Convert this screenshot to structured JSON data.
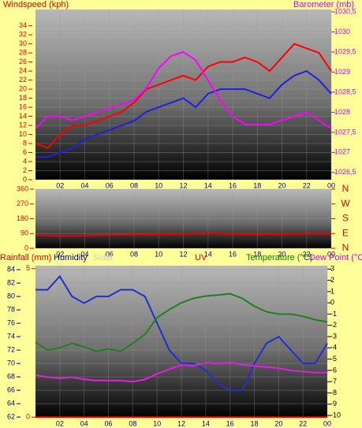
{
  "chart_data": [
    {
      "type": "line",
      "headers": [
        {
          "text": "Windspeed (kph)",
          "color": "#e00000"
        },
        {
          "text": "Barometer (mb)",
          "color": "#e000e0"
        }
      ],
      "x": [
        0,
        1,
        2,
        3,
        4,
        5,
        6,
        7,
        8,
        9,
        10,
        11,
        12,
        13,
        14,
        15,
        16,
        17,
        18,
        19,
        20,
        21,
        22,
        23,
        24
      ],
      "xlim": [
        0,
        24
      ],
      "xticks": [
        {
          "value": 2,
          "label": "02"
        },
        {
          "value": 4,
          "label": "04"
        },
        {
          "value": 6,
          "label": "06"
        },
        {
          "value": 8,
          "label": "08"
        },
        10,
        12,
        14,
        16,
        18,
        20,
        22,
        {
          "value": 24,
          "label": "00"
        }
      ],
      "ylim": [
        0,
        37.6
      ],
      "yticks": [
        0,
        2,
        4,
        6,
        8,
        10,
        12,
        14,
        16,
        18,
        20,
        22,
        24,
        26,
        28,
        30,
        32,
        34
      ],
      "y2lim": [
        1026.32,
        1030.56
      ],
      "y2ticks": [
        {
          "value": 1026.5,
          "label": "1026,5"
        },
        1027,
        {
          "value": 1027.5,
          "label": "1027,5"
        },
        1028,
        {
          "value": 1028.5,
          "label": "1028,5"
        },
        1029,
        {
          "value": 1029.5,
          "label": "1029,5"
        },
        1030,
        {
          "value": 1030.5,
          "label": "1030,5"
        }
      ],
      "grid": true,
      "series": [
        {
          "color": "#ff0000",
          "values": [
            8,
            7,
            10,
            12,
            12,
            13,
            14,
            15,
            17,
            20,
            21,
            22,
            23,
            22,
            25,
            26,
            26,
            27,
            26,
            24,
            27,
            30,
            29,
            28,
            24
          ]
        },
        {
          "color": "#2020e0",
          "values": [
            5,
            5,
            6,
            7,
            9,
            10,
            11,
            12,
            13,
            15,
            16,
            17,
            18,
            16,
            19,
            20,
            20,
            20,
            19,
            18,
            21,
            23,
            24,
            22,
            19
          ]
        },
        {
          "color": "#ff00ff",
          "axis": "y2",
          "values": [
            1027.6,
            1027.9,
            1027.9,
            1027.8,
            1027.9,
            1028.0,
            1028.1,
            1028.2,
            1028.3,
            1028.6,
            1029.1,
            1029.4,
            1029.5,
            1029.3,
            1028.8,
            1028.3,
            1027.9,
            1027.7,
            1027.7,
            1027.7,
            1027.8,
            1027.9,
            1028.0,
            1027.8,
            1027.6
          ]
        }
      ]
    },
    {
      "type": "line",
      "headers": [],
      "x": [
        0,
        2,
        4,
        6,
        8,
        10,
        12,
        14,
        16,
        18,
        20,
        22,
        24
      ],
      "xlim": [
        0,
        24
      ],
      "xticks": [
        {
          "value": 2,
          "label": "02"
        },
        {
          "value": 4,
          "label": "04"
        },
        {
          "value": 6,
          "label": "06"
        },
        {
          "value": 8,
          "label": "08"
        },
        10,
        12,
        14,
        16,
        18,
        20,
        22,
        {
          "value": 24,
          "label": "00"
        }
      ],
      "ylim": [
        0,
        360
      ],
      "yticks": [
        0,
        90,
        180,
        270,
        360
      ],
      "y2lim": [
        0,
        360
      ],
      "y2ticks": [
        {
          "value": 0,
          "label": "N"
        },
        {
          "value": 90,
          "label": "E"
        },
        {
          "value": 180,
          "label": "S"
        },
        {
          "value": 270,
          "label": "W"
        },
        {
          "value": 360,
          "label": "N"
        }
      ],
      "grid": true,
      "series": [
        {
          "color": "#ee0000",
          "values": [
            80,
            76,
            78,
            82,
            84,
            86,
            88,
            92,
            88,
            86,
            88,
            90,
            90
          ]
        }
      ]
    },
    {
      "type": "line",
      "headers": [
        {
          "text": "Rainfall (mm)",
          "color": "#e00000"
        },
        {
          "text": "Humidity",
          "color": "#000080"
        },
        {
          "text": "Solar",
          "color": "#d0d0c0"
        },
        {
          "text": "UV",
          "color": "#e00000"
        },
        {
          "text": "Temperature (°C)",
          "color": "#008000"
        },
        {
          "text": "Dew Point (°C)",
          "color": "#e000e0"
        }
      ],
      "x": [
        0,
        1,
        2,
        3,
        4,
        5,
        6,
        7,
        8,
        9,
        10,
        11,
        12,
        13,
        14,
        15,
        16,
        17,
        18,
        19,
        20,
        21,
        22,
        23,
        24
      ],
      "xlim": [
        0,
        24
      ],
      "xticks": [
        {
          "value": 2,
          "label": "02"
        },
        {
          "value": 4,
          "label": "04"
        },
        {
          "value": 6,
          "label": "06"
        },
        {
          "value": 8,
          "label": "08"
        },
        10,
        12,
        14,
        16,
        18,
        20,
        22,
        {
          "value": 24,
          "label": "00"
        }
      ],
      "ylim": [
        61.9,
        84.6
      ],
      "yticks": [
        62,
        64,
        66,
        68,
        70,
        72,
        74,
        76,
        78,
        80,
        82,
        84
      ],
      "y3lim": [
        -0.02,
        5.1
      ],
      "y3ticks": [
        0,
        5
      ],
      "y2lim": [
        -10.2,
        3.3
      ],
      "y2ticks": [
        3,
        2,
        1,
        0,
        -1,
        -2,
        -3,
        -4,
        -5,
        -6,
        -7,
        -8,
        -9,
        -10
      ],
      "grid": true,
      "series": [
        {
          "color": "#ff0000",
          "axis": "y3",
          "values": [
            0,
            0,
            0,
            0,
            0,
            0,
            0,
            0,
            0,
            0,
            0,
            0,
            0,
            0,
            0,
            0,
            0,
            0,
            0,
            0,
            0,
            0,
            0,
            0,
            0
          ]
        },
        {
          "color": "#2030d0",
          "values": [
            81,
            81,
            83,
            80,
            79,
            80,
            80,
            81,
            81,
            80,
            76,
            72,
            70,
            70,
            69,
            67,
            66,
            66,
            70,
            73,
            74,
            72,
            70,
            70,
            73
          ]
        },
        {
          "color": "#208020",
          "axis": "y2",
          "values": [
            -3.5,
            -4.2,
            -4.0,
            -3.6,
            -3.9,
            -4.3,
            -4.1,
            -4.3,
            -3.6,
            -2.8,
            -1.3,
            -0.6,
            0.0,
            0.4,
            0.6,
            0.7,
            0.8,
            0.4,
            -0.3,
            -0.8,
            -1.0,
            -1.0,
            -1.2,
            -1.5,
            -1.7
          ]
        },
        {
          "color": "#e020e0",
          "axis": "y2",
          "values": [
            -6.4,
            -6.6,
            -6.7,
            -6.6,
            -6.8,
            -6.9,
            -6.9,
            -6.9,
            -7.0,
            -6.8,
            -6.3,
            -5.9,
            -5.5,
            -5.6,
            -5.3,
            -5.4,
            -5.3,
            -5.5,
            -5.6,
            -5.7,
            -5.8,
            -6.0,
            -6.1,
            -6.2,
            -6.2
          ]
        }
      ]
    }
  ]
}
